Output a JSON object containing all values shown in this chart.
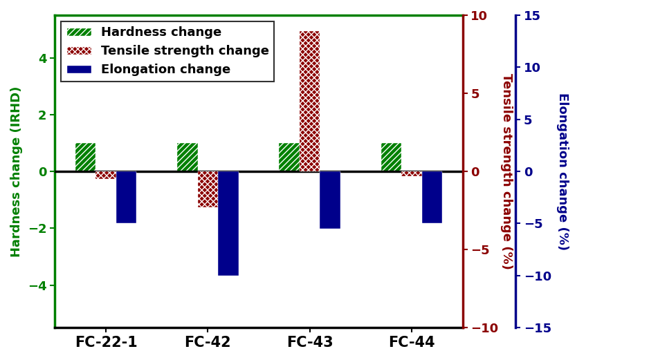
{
  "categories": [
    "FC-22-1",
    "FC-42",
    "FC-43",
    "FC-44"
  ],
  "hardness": [
    1.0,
    1.0,
    1.0,
    1.0
  ],
  "tensile": [
    -0.5,
    -2.3,
    9.0,
    -0.3
  ],
  "elongation": [
    -5.0,
    -10.0,
    -5.5,
    -5.0
  ],
  "left_ylim": [
    -5.5,
    5.5
  ],
  "mid_ylim": [
    -10,
    10
  ],
  "right_ylim": [
    -15,
    15
  ],
  "left_yticks": [
    -4,
    -2,
    0,
    2,
    4
  ],
  "mid_yticks": [
    -10,
    -5,
    0,
    5,
    10
  ],
  "right_yticks": [
    -15,
    -10,
    -5,
    0,
    5,
    10,
    15
  ],
  "bar_width": 0.2,
  "hardness_color": "#008000",
  "tensile_color": "#8B0000",
  "elongation_color": "#00008B",
  "ylabel_left": "Hardness change (IRHD)",
  "ylabel_mid": "Tensile strength change (%)",
  "ylabel_right": "Elongation change (%)",
  "legend_labels": [
    "Hardness change",
    "Tensile strength change",
    "Elongation change"
  ],
  "xlabel_fontsize": 15,
  "ylabel_fontsize": 13,
  "tick_fontsize": 13,
  "legend_fontsize": 13
}
